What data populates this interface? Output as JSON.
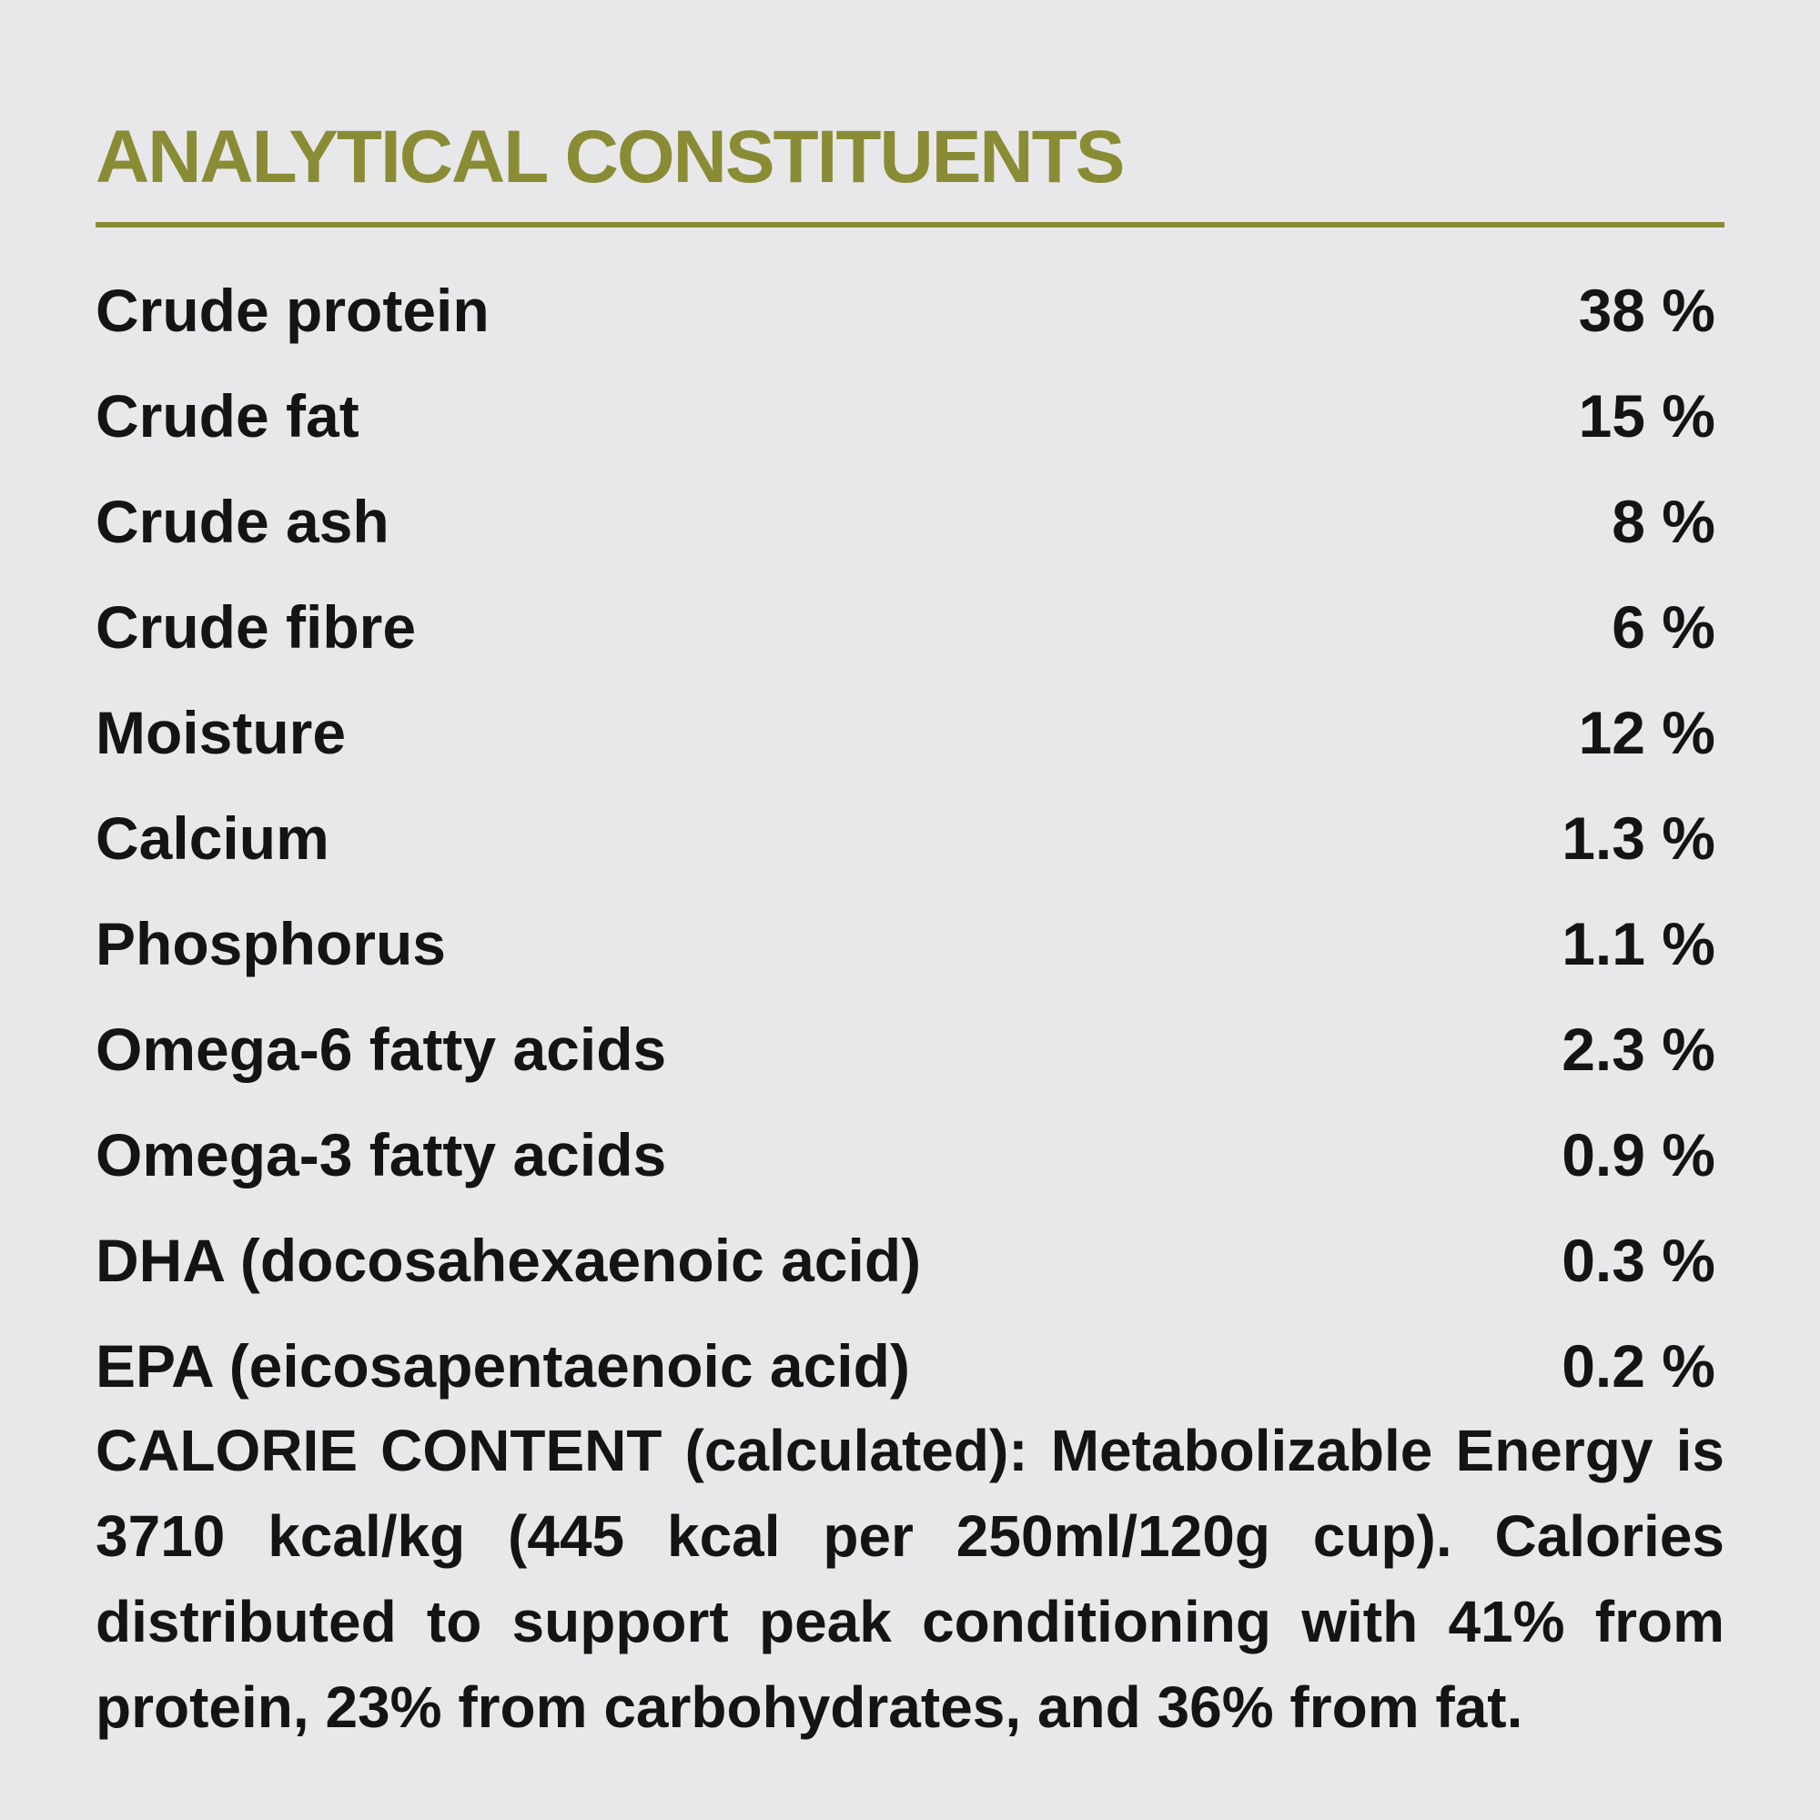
{
  "title": "ANALYTICAL CONSTITUENTS",
  "accent_color": "#8a8c35",
  "rows": [
    {
      "label": "Crude protein",
      "value": "38 %"
    },
    {
      "label": "Crude fat",
      "value": "15 %"
    },
    {
      "label": "Crude ash",
      "value": "8 %"
    },
    {
      "label": "Crude fibre",
      "value": "6 %"
    },
    {
      "label": "Moisture",
      "value": "12 %"
    },
    {
      "label": "Calcium",
      "value": "1.3 %"
    },
    {
      "label": "Phosphorus",
      "value": "1.1 %"
    },
    {
      "label": "Omega-6 fatty acids",
      "value": "2.3 %"
    },
    {
      "label": "Omega-3 fatty acids",
      "value": "0.9 %"
    },
    {
      "label": "DHA (docosahexaenoic acid)",
      "value": "0.3 %"
    },
    {
      "label": "EPA (eicosapentaenoic acid)",
      "value": "0.2 %"
    }
  ],
  "calorie_text": "CALORIE CONTENT (calculated): Metabolizable Energy is 3710 kcal/kg (445 kcal per 250ml/120g cup). Calories distributed to support peak conditioning with 41% from protein, 23% from carbohydrates, and 36% from fat."
}
